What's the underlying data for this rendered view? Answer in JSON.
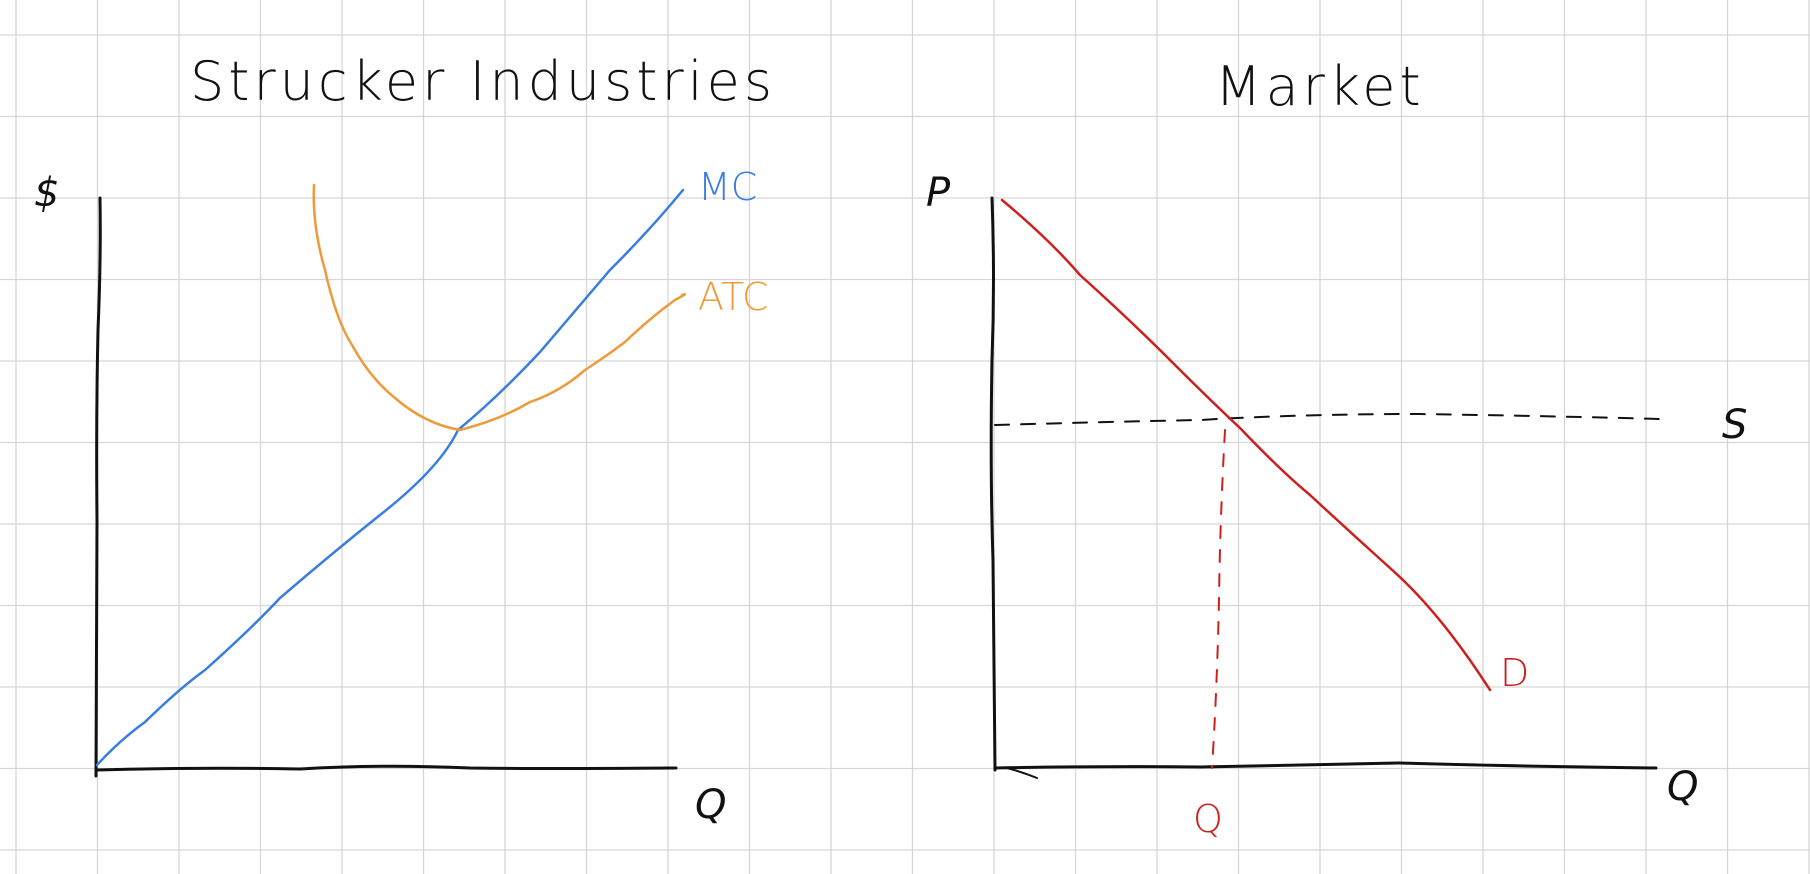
{
  "colors": {
    "grid": "#d6d6d6",
    "ink": "#111111",
    "mc": "#3a7de0",
    "atc": "#ef9a3a",
    "market": "#cc1f1f"
  },
  "firm_panel": {
    "title": "Strucker Industries",
    "y_axis_label": "$",
    "x_axis_label": "Q",
    "mc_label": "MC",
    "atc_label": "ATC"
  },
  "market_panel": {
    "title": "Market",
    "y_axis_label": "P",
    "x_axis_label": "Q",
    "supply_label": "S",
    "demand_label": "D",
    "quantity_label": "Q"
  }
}
